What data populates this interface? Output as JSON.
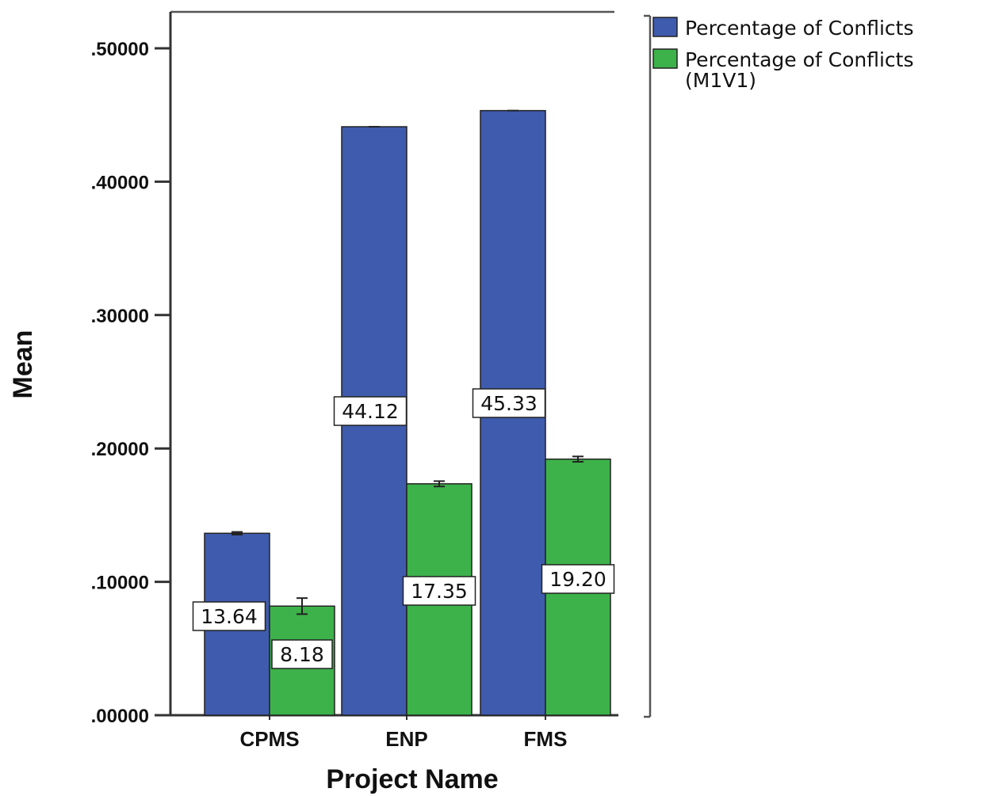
{
  "chart_data": {
    "type": "bar",
    "xlabel": "Project Name",
    "ylabel": "Mean",
    "ylim": [
      0,
      0.55
    ],
    "yticks": [
      ".00000",
      ".10000",
      ".20000",
      ".30000",
      ".40000",
      ".50000"
    ],
    "ytick_values": [
      0,
      0.1,
      0.2,
      0.3,
      0.4,
      0.5
    ],
    "categories": [
      "CPMS",
      "ENP",
      "FMS"
    ],
    "legend_position": "top-right",
    "grid": false,
    "series": [
      {
        "name": "Percentage of Conflicts",
        "color": "#3f5bad",
        "values": [
          0.1364,
          0.4412,
          0.4533
        ],
        "data_labels": [
          "13.64",
          "44.12",
          "45.33"
        ],
        "errors": [
          0.001,
          0.0,
          0.0
        ]
      },
      {
        "name": "Percentage of Conflicts (M1V1)",
        "legend_lines": [
          "Percentage of Conflicts",
          "(M1V1)"
        ],
        "color": "#3db24a",
        "values": [
          0.0818,
          0.1735,
          0.192
        ],
        "data_labels": [
          "8.18",
          "17.35",
          "19.20"
        ],
        "errors": [
          0.006,
          0.002,
          0.002
        ]
      }
    ]
  }
}
